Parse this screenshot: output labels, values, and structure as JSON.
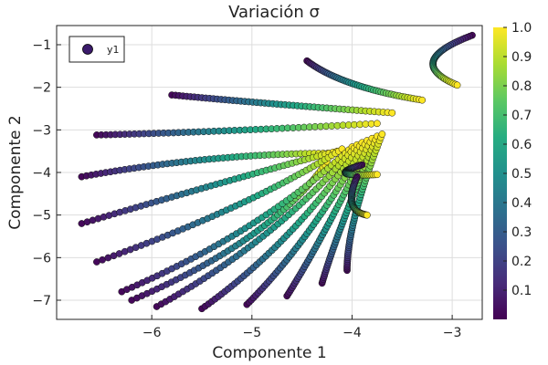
{
  "chart_data": {
    "type": "scatter",
    "title": "Variación σ",
    "xlabel": "Componente 1",
    "ylabel": "Componente 2",
    "xlim": [
      -6.95,
      -2.7
    ],
    "ylim": [
      -7.45,
      -0.55
    ],
    "xticks": [
      -6,
      -5,
      -4,
      -3
    ],
    "yticks": [
      -7,
      -6,
      -5,
      -4,
      -3,
      -2,
      -1
    ],
    "xtick_labels": [
      "−6",
      "−5",
      "−4",
      "−3"
    ],
    "ytick_labels": [
      "−7",
      "−6",
      "−5",
      "−4",
      "−3",
      "−2",
      "−1"
    ],
    "grid": true,
    "legend": {
      "position": "top-left",
      "entries": [
        "y1"
      ]
    },
    "colormap": "viridis",
    "colorbar": {
      "range": [
        0,
        1
      ],
      "ticks": [
        0.1,
        0.2,
        0.3,
        0.4,
        0.5,
        0.6,
        0.7,
        0.8,
        0.9,
        1.0
      ],
      "tick_labels": [
        "0.1",
        "0.2",
        "0.3",
        "0.4",
        "0.5",
        "0.6",
        "0.7",
        "0.8",
        "0.9",
        "1.0"
      ]
    },
    "series": [
      {
        "name": "y1",
        "trajectories": [
          {
            "start": [
              -6.2,
              -7.0
            ],
            "ctrl": [
              -4.8,
              -5.6
            ],
            "end": [
              -4.25,
              -3.75
            ]
          },
          {
            "start": [
              -6.7,
              -4.1
            ],
            "ctrl": [
              -5.4,
              -3.55
            ],
            "end": [
              -4.2,
              -3.55
            ]
          },
          {
            "start": [
              -6.7,
              -5.2
            ],
            "ctrl": [
              -5.2,
              -4.15
            ],
            "end": [
              -4.15,
              -3.5
            ]
          },
          {
            "start": [
              -6.55,
              -6.1
            ],
            "ctrl": [
              -5.0,
              -4.8
            ],
            "end": [
              -4.1,
              -3.45
            ]
          },
          {
            "start": [
              -6.3,
              -6.8
            ],
            "ctrl": [
              -4.9,
              -5.4
            ],
            "end": [
              -4.0,
              -3.4
            ]
          },
          {
            "start": [
              -5.95,
              -7.15
            ],
            "ctrl": [
              -4.75,
              -5.6
            ],
            "end": [
              -3.95,
              -3.35
            ]
          },
          {
            "start": [
              -5.5,
              -7.2
            ],
            "ctrl": [
              -4.6,
              -5.7
            ],
            "end": [
              -3.9,
              -3.3
            ]
          },
          {
            "start": [
              -5.05,
              -7.1
            ],
            "ctrl": [
              -4.45,
              -5.7
            ],
            "end": [
              -3.85,
              -3.25
            ]
          },
          {
            "start": [
              -4.65,
              -6.9
            ],
            "ctrl": [
              -4.3,
              -5.6
            ],
            "end": [
              -3.8,
              -3.2
            ]
          },
          {
            "start": [
              -4.3,
              -6.6
            ],
            "ctrl": [
              -4.15,
              -5.4
            ],
            "end": [
              -3.75,
              -3.15
            ]
          },
          {
            "start": [
              -4.05,
              -6.3
            ],
            "ctrl": [
              -4.05,
              -5.2
            ],
            "end": [
              -3.7,
              -3.1
            ]
          },
          {
            "start": [
              -6.55,
              -3.12
            ],
            "ctrl": [
              -5.3,
              -3.05
            ],
            "end": [
              -3.75,
              -2.85
            ]
          },
          {
            "start": [
              -5.8,
              -2.18
            ],
            "ctrl": [
              -4.8,
              -2.4
            ],
            "end": [
              -3.6,
              -2.6
            ]
          },
          {
            "start": [
              -4.45,
              -1.38
            ],
            "ctrl": [
              -4.1,
              -2.0
            ],
            "end": [
              -3.3,
              -2.3
            ]
          },
          {
            "start": [
              -2.8,
              -0.78
            ],
            "ctrl": [
              -3.5,
              -1.4
            ],
            "end": [
              -2.95,
              -1.95
            ]
          },
          {
            "start": [
              -3.9,
              -3.82
            ],
            "ctrl": [
              -4.3,
              -4.1
            ],
            "end": [
              -3.75,
              -4.05
            ]
          },
          {
            "start": [
              -3.95,
              -4.1
            ],
            "ctrl": [
              -4.1,
              -4.9
            ],
            "end": [
              -3.85,
              -5.0
            ]
          }
        ]
      }
    ]
  }
}
